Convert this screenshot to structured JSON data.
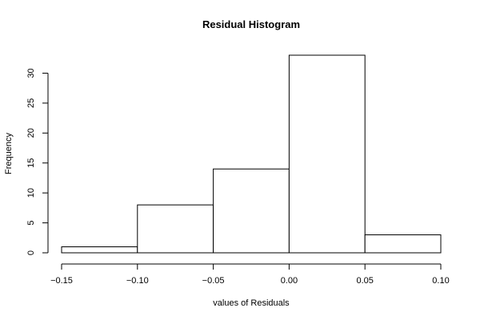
{
  "chart_data": {
    "type": "bar",
    "title": "Residual Histogram",
    "xlabel": "values of Residuals",
    "ylabel": "Frequency",
    "bins": [
      {
        "start": -0.15,
        "end": -0.1,
        "count": 1
      },
      {
        "start": -0.1,
        "end": -0.05,
        "count": 8
      },
      {
        "start": -0.05,
        "end": 0.0,
        "count": 14
      },
      {
        "start": 0.0,
        "end": 0.05,
        "count": 33
      },
      {
        "start": 0.05,
        "end": 0.1,
        "count": 3
      }
    ],
    "xlim": [
      -0.15,
      0.1
    ],
    "ylim": [
      0,
      33
    ],
    "x_ticks": [
      -0.15,
      -0.1,
      -0.05,
      0.0,
      0.05,
      0.1
    ],
    "x_tick_labels": [
      "−0.15",
      "−0.10",
      "−0.05",
      "0.00",
      "0.05",
      "0.10"
    ],
    "y_ticks": [
      0,
      5,
      10,
      15,
      20,
      25,
      30
    ],
    "y_tick_labels": [
      "0",
      "5",
      "10",
      "15",
      "20",
      "25",
      "30"
    ],
    "grid": false,
    "bar_fill": "#ffffff",
    "bar_stroke": "#000000"
  }
}
